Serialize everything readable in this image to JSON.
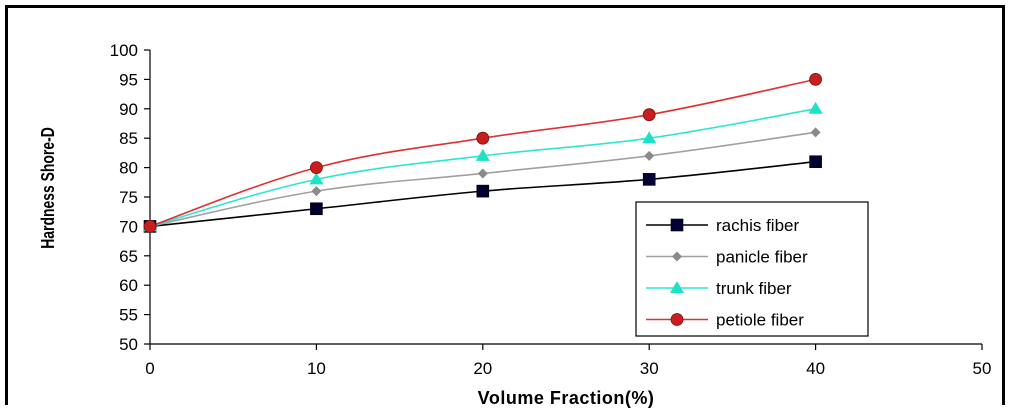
{
  "chart_data": {
    "type": "line",
    "title": "",
    "xlabel": "Volume Fraction(%)",
    "ylabel": "Hardness Shore-D",
    "x": [
      0,
      10,
      20,
      30,
      40
    ],
    "xlim": [
      0,
      50
    ],
    "ylim": [
      50,
      100
    ],
    "xticks": [
      "0",
      "10",
      "20",
      "30",
      "40",
      "50"
    ],
    "yticks": [
      "50",
      "55",
      "60",
      "65",
      "70",
      "75",
      "80",
      "85",
      "90",
      "95",
      "100"
    ],
    "grid": false,
    "legend_position": "bottom-right",
    "series": [
      {
        "name": "rachis fiber",
        "values": [
          70,
          73,
          76,
          78,
          81
        ],
        "color": "#000033",
        "line_color": "#000000",
        "marker": "square"
      },
      {
        "name": "panicle fiber",
        "values": [
          70,
          76,
          79,
          82,
          86
        ],
        "color": "#8a8a8a",
        "line_color": "#a0a0a0",
        "marker": "diamond"
      },
      {
        "name": "trunk fiber",
        "values": [
          70,
          78,
          82,
          85,
          90
        ],
        "color": "#1de3c4",
        "line_color": "#2ee6d0",
        "marker": "triangle"
      },
      {
        "name": "petiole fiber",
        "values": [
          70,
          80,
          85,
          89,
          95
        ],
        "color": "#c81e1e",
        "line_color": "#e03030",
        "marker": "circle"
      }
    ]
  }
}
